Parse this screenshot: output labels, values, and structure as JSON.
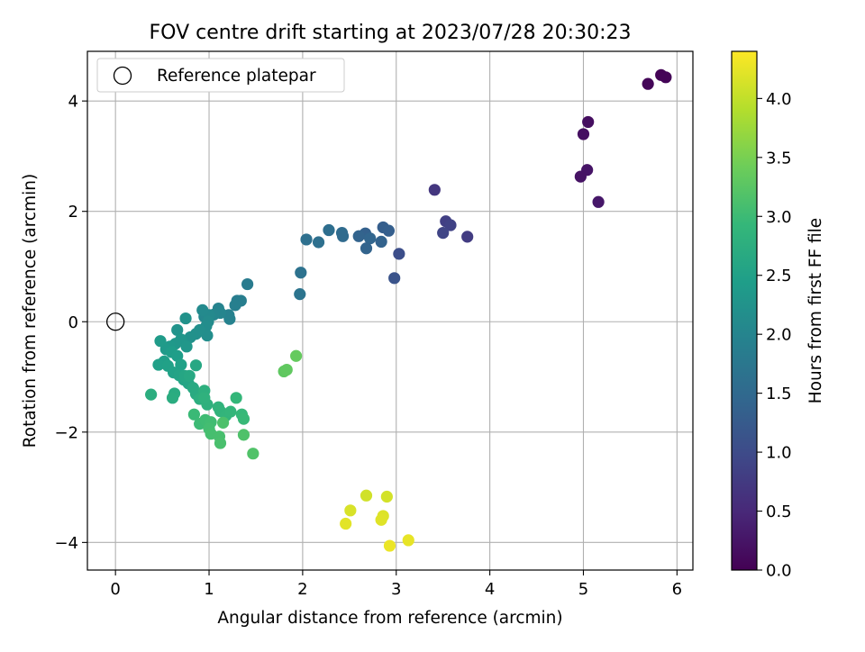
{
  "chart_data": {
    "type": "scatter",
    "title": "FOV centre drift starting at 2023/07/28 20:30:23",
    "xlabel": "Angular distance from reference (arcmin)",
    "ylabel": "Rotation from reference (arcmin)",
    "xlim": [
      -0.3,
      6.17
    ],
    "ylim": [
      -4.5,
      4.9
    ],
    "xticks": [
      0,
      1,
      2,
      3,
      4,
      5,
      6
    ],
    "yticks": [
      -4,
      -2,
      0,
      2,
      4
    ],
    "grid": true,
    "legend": {
      "position": "top-left",
      "entries": [
        "Reference platepar"
      ]
    },
    "reference_point": {
      "x": 0,
      "y": 0,
      "label": "Reference platepar"
    },
    "colorbar": {
      "label": "Hours from first FF file",
      "colormap": "viridis",
      "range": [
        0.0,
        4.4
      ],
      "ticks": [
        "0.0",
        "0.5",
        "1.0",
        "1.5",
        "2.0",
        "2.5",
        "3.0",
        "3.5",
        "4.0"
      ]
    },
    "series": [
      {
        "points": [
          [
            5.83,
            4.47,
            0.03
          ],
          [
            5.88,
            4.43,
            0.04
          ],
          [
            5.69,
            4.31,
            0.06
          ],
          [
            5.05,
            3.62,
            0.16
          ],
          [
            5.0,
            3.4,
            0.18
          ],
          [
            5.04,
            2.75,
            0.24
          ],
          [
            4.97,
            2.63,
            0.22
          ],
          [
            5.16,
            2.17,
            0.28
          ],
          [
            3.41,
            2.39,
            0.7
          ],
          [
            3.53,
            1.82,
            0.82
          ],
          [
            3.58,
            1.75,
            0.86
          ],
          [
            3.5,
            1.61,
            0.9
          ],
          [
            3.76,
            1.54,
            0.78
          ],
          [
            3.03,
            1.23,
            1.05
          ],
          [
            2.98,
            0.79,
            1.12
          ],
          [
            2.86,
            1.71,
            1.3
          ],
          [
            2.92,
            1.65,
            1.32
          ],
          [
            2.67,
            1.6,
            1.36
          ],
          [
            2.6,
            1.55,
            1.4
          ],
          [
            2.72,
            1.51,
            1.43
          ],
          [
            2.84,
            1.45,
            1.38
          ],
          [
            2.68,
            1.33,
            1.4
          ],
          [
            2.42,
            1.61,
            1.55
          ],
          [
            2.28,
            1.66,
            1.58
          ],
          [
            2.43,
            1.55,
            1.52
          ],
          [
            2.17,
            1.44,
            1.62
          ],
          [
            2.04,
            1.49,
            1.62
          ],
          [
            1.98,
            0.89,
            1.65
          ],
          [
            1.97,
            0.5,
            1.7
          ],
          [
            1.41,
            0.68,
            1.82
          ],
          [
            1.3,
            0.38,
            1.86
          ],
          [
            1.34,
            0.38,
            1.88
          ],
          [
            1.28,
            0.3,
            1.9
          ],
          [
            1.21,
            0.12,
            1.93
          ],
          [
            1.22,
            0.05,
            1.96
          ],
          [
            1.1,
            0.24,
            1.98
          ],
          [
            1.12,
            0.16,
            2.0
          ],
          [
            1.05,
            0.13,
            2.02
          ],
          [
            0.95,
            0.09,
            2.05
          ],
          [
            1.0,
            0.12,
            2.07
          ],
          [
            0.93,
            0.21,
            2.1
          ],
          [
            0.99,
            0.0,
            2.12
          ],
          [
            0.97,
            -0.08,
            2.15
          ],
          [
            0.98,
            -0.25,
            2.17
          ],
          [
            0.9,
            -0.15,
            2.18
          ],
          [
            0.86,
            -0.22,
            2.2
          ],
          [
            0.8,
            -0.28,
            2.22
          ],
          [
            0.75,
            0.06,
            2.24
          ],
          [
            0.66,
            -0.15,
            2.26
          ],
          [
            0.7,
            -0.32,
            2.3
          ],
          [
            0.76,
            -0.45,
            2.32
          ],
          [
            0.64,
            -0.4,
            2.33
          ],
          [
            0.58,
            -0.45,
            2.36
          ],
          [
            0.54,
            -0.5,
            2.38
          ],
          [
            0.48,
            -0.35,
            2.4
          ],
          [
            0.6,
            -0.55,
            2.42
          ],
          [
            0.66,
            -0.62,
            2.44
          ],
          [
            0.52,
            -0.72,
            2.46
          ],
          [
            0.46,
            -0.78,
            2.48
          ],
          [
            0.56,
            -0.8,
            2.5
          ],
          [
            0.7,
            -0.78,
            2.5
          ],
          [
            0.62,
            -0.92,
            2.52
          ],
          [
            0.68,
            -0.97,
            2.55
          ],
          [
            0.73,
            -1.05,
            2.57
          ],
          [
            0.78,
            -1.12,
            2.58
          ],
          [
            0.74,
            -0.98,
            2.6
          ],
          [
            0.86,
            -0.79,
            2.62
          ],
          [
            0.79,
            -0.98,
            2.64
          ],
          [
            0.83,
            -1.2,
            2.66
          ],
          [
            0.86,
            -1.31,
            2.68
          ],
          [
            0.63,
            -1.3,
            2.7
          ],
          [
            0.61,
            -1.38,
            2.72
          ],
          [
            0.38,
            -1.32,
            2.74
          ],
          [
            0.9,
            -1.4,
            2.76
          ],
          [
            0.95,
            -1.25,
            2.78
          ],
          [
            0.98,
            -1.5,
            2.8
          ],
          [
            0.95,
            -1.38,
            2.82
          ],
          [
            1.1,
            -1.55,
            2.84
          ],
          [
            1.12,
            -1.62,
            2.86
          ],
          [
            1.18,
            -1.7,
            2.88
          ],
          [
            1.23,
            -1.63,
            2.9
          ],
          [
            1.29,
            -1.38,
            2.92
          ],
          [
            1.35,
            -1.68,
            2.94
          ],
          [
            1.37,
            -1.76,
            2.96
          ],
          [
            0.84,
            -1.68,
            2.98
          ],
          [
            0.9,
            -1.85,
            3.0
          ],
          [
            0.96,
            -1.78,
            3.02
          ],
          [
            1.02,
            -1.82,
            3.04
          ],
          [
            1.0,
            -1.94,
            3.06
          ],
          [
            1.02,
            -2.03,
            3.08
          ],
          [
            1.11,
            -2.08,
            3.1
          ],
          [
            1.12,
            -2.2,
            3.12
          ],
          [
            1.15,
            -1.83,
            3.14
          ],
          [
            1.37,
            -2.05,
            3.16
          ],
          [
            1.47,
            -2.39,
            3.18
          ],
          [
            1.8,
            -0.9,
            3.3
          ],
          [
            1.83,
            -0.87,
            3.32
          ],
          [
            1.93,
            -0.62,
            3.35
          ],
          [
            2.68,
            -3.15,
            4.1
          ],
          [
            2.9,
            -3.17,
            4.12
          ],
          [
            2.51,
            -3.42,
            4.15
          ],
          [
            2.86,
            -3.52,
            4.18
          ],
          [
            2.84,
            -3.59,
            4.2
          ],
          [
            2.46,
            -3.66,
            4.22
          ],
          [
            3.13,
            -3.96,
            4.25
          ],
          [
            2.93,
            -4.06,
            4.28
          ]
        ]
      }
    ]
  }
}
